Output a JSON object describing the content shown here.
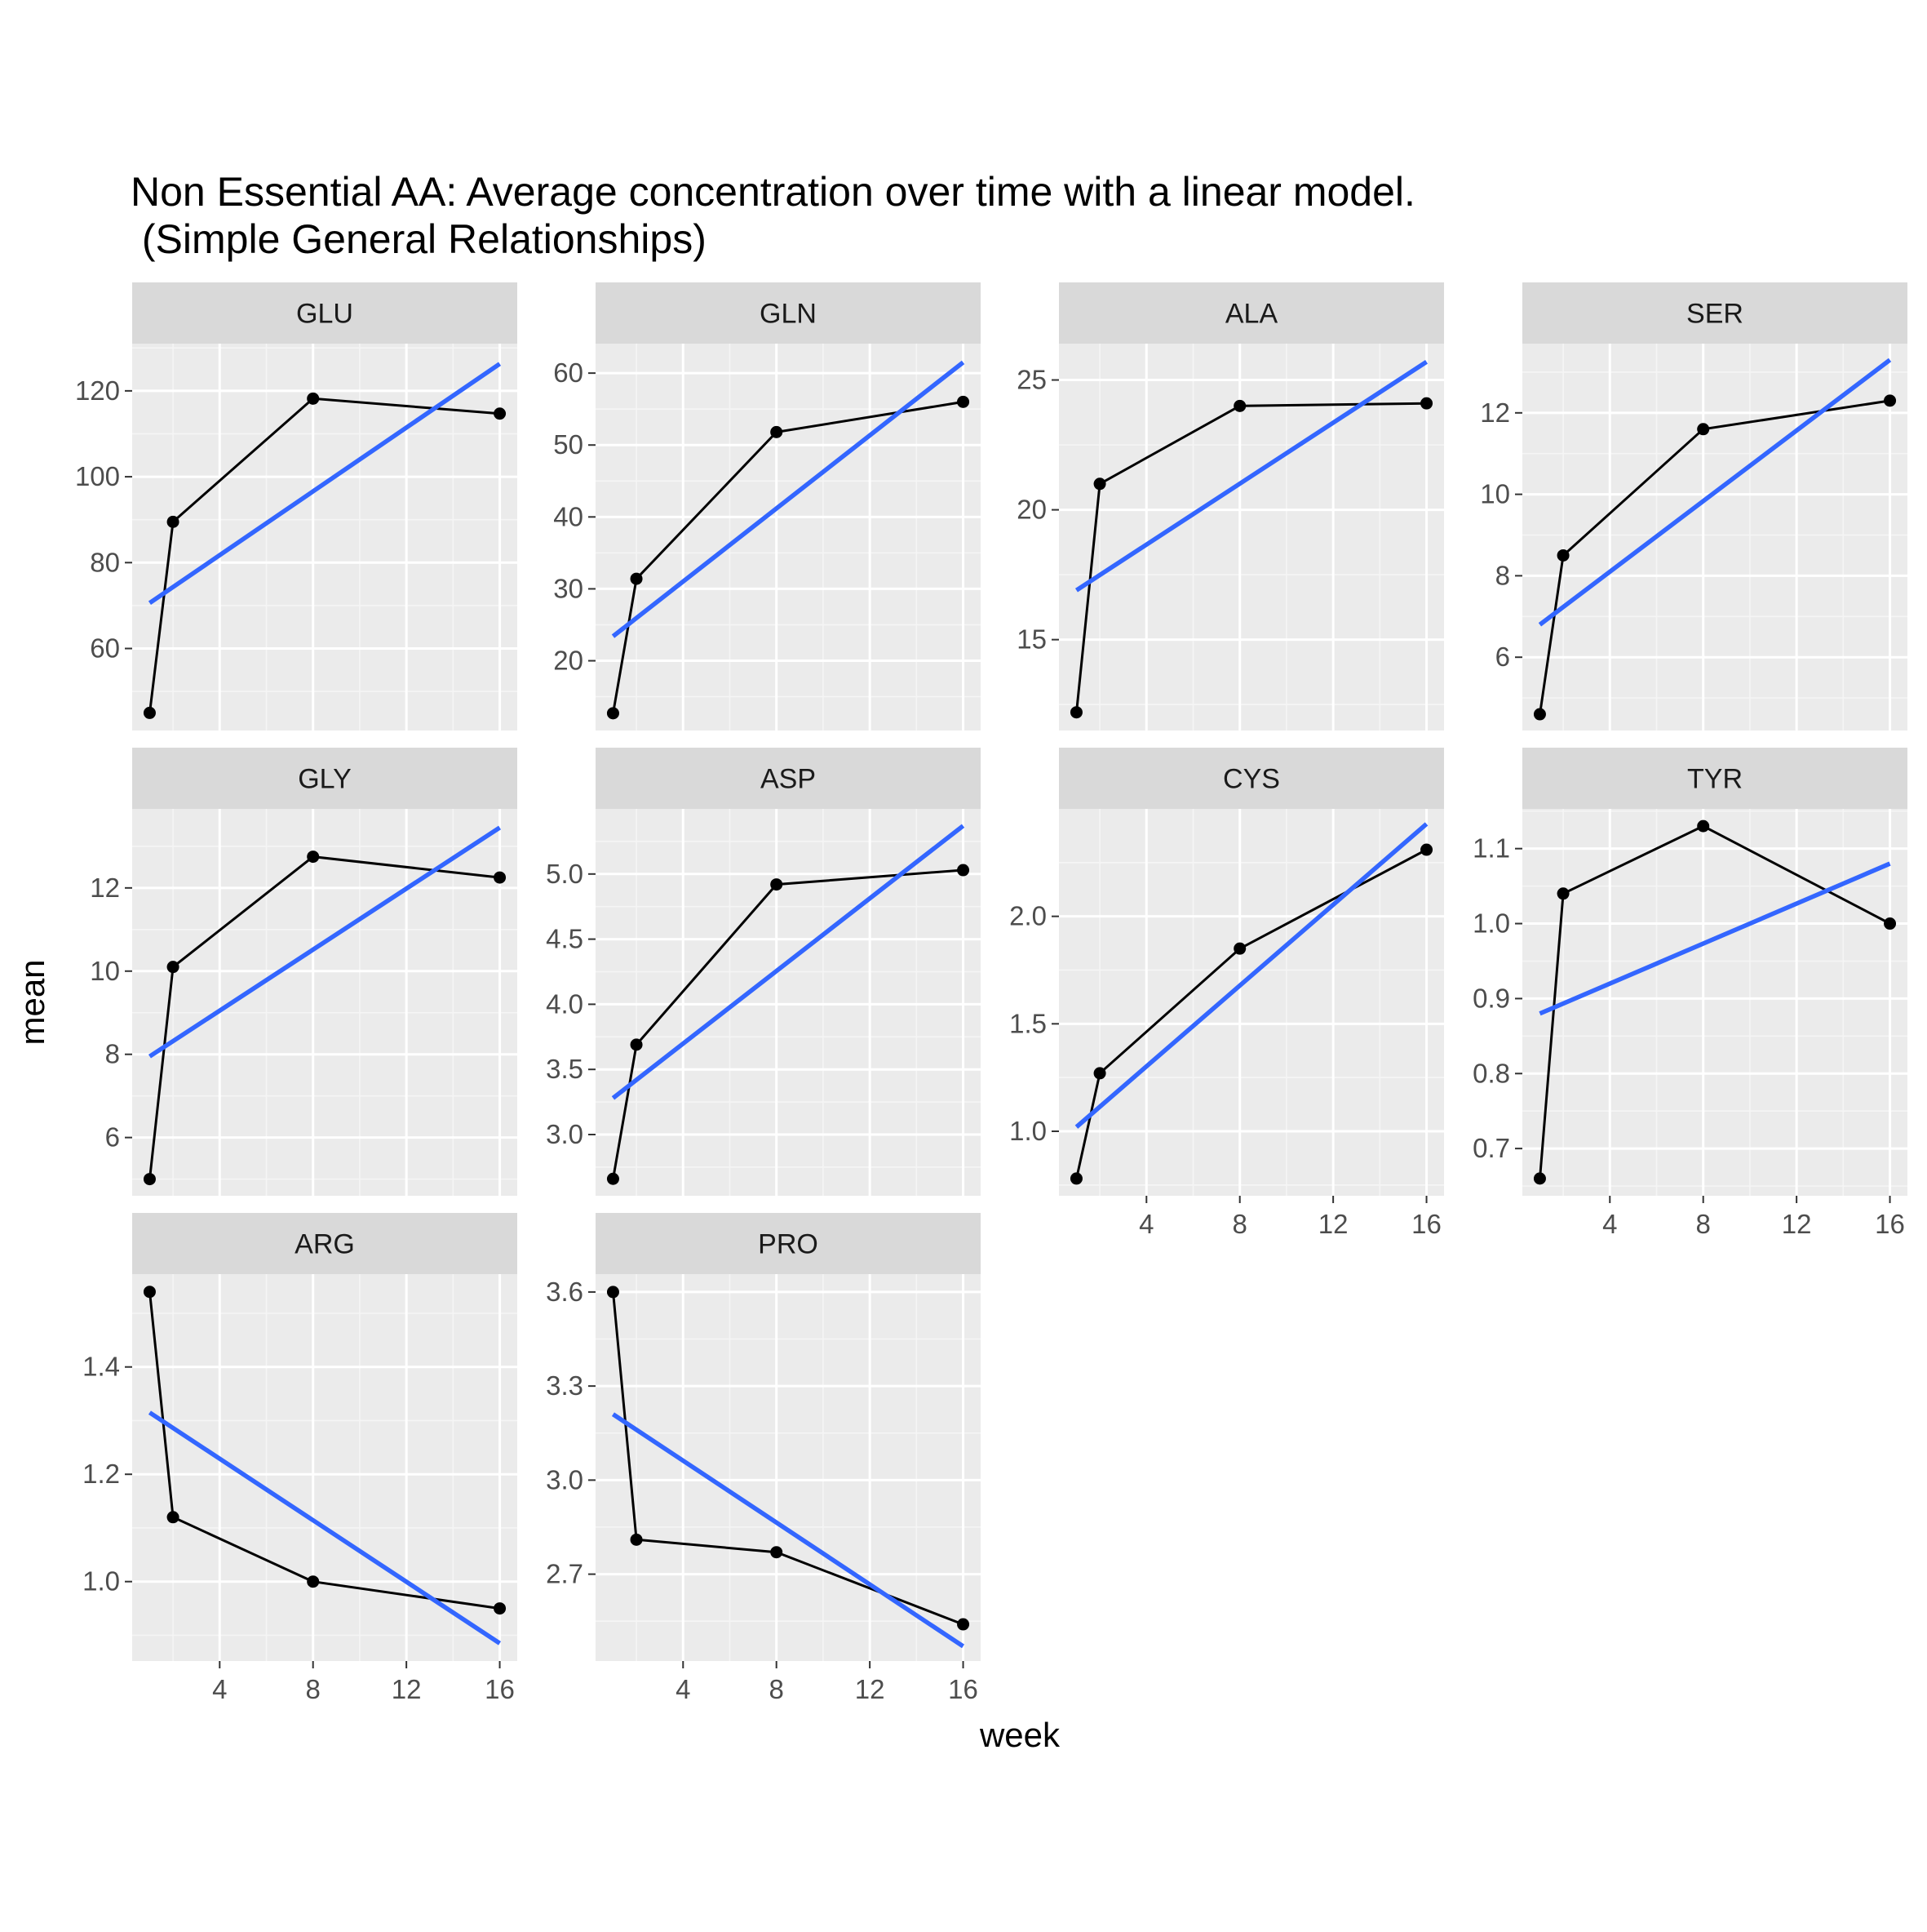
{
  "colors": {
    "panel_background": "#ebebeb",
    "strip_background": "#d9d9d9",
    "grid_major": "#ffffff",
    "grid_minor": "#f5f5f5",
    "observed_line": "#000000",
    "fit_line": "#3366ff",
    "tick_mark": "#333333"
  },
  "chart_data": {
    "type": "line",
    "title": "Non Essential AA: Average concentration over time with a linear model.\n (Simple General Relationships)",
    "xlabel": "week",
    "ylabel": "mean",
    "facet_layout": "4 columns, 3 rows",
    "x_ticks": [
      4,
      8,
      12,
      16
    ],
    "x_range": [
      0.25,
      16.75
    ],
    "grid": true,
    "series_styles": {
      "observed": "black line with points",
      "fit": "blue linear model line"
    },
    "panels": [
      {
        "name": "GLU",
        "x": [
          1,
          2,
          8,
          16
        ],
        "mean": [
          45.0,
          89.5,
          118.2,
          114.7
        ],
        "fit_x": [
          1,
          16
        ],
        "fit_y": [
          70.6,
          126.3
        ],
        "y_ticks": [
          60,
          80,
          100,
          120
        ],
        "ylim": [
          40.9,
          131.0
        ]
      },
      {
        "name": "GLN",
        "x": [
          1,
          2,
          8,
          16
        ],
        "mean": [
          12.7,
          31.4,
          51.8,
          56.0
        ],
        "fit_x": [
          1,
          16
        ],
        "fit_y": [
          23.4,
          61.5
        ],
        "y_ticks": [
          20,
          30,
          40,
          50,
          60
        ],
        "ylim": [
          10.3,
          64.1
        ]
      },
      {
        "name": "ALA",
        "x": [
          1,
          2,
          8,
          16
        ],
        "mean": [
          12.2,
          21.0,
          24.0,
          24.1
        ],
        "fit_x": [
          1,
          16
        ],
        "fit_y": [
          16.9,
          25.7
        ],
        "y_ticks": [
          15,
          20,
          25
        ],
        "ylim": [
          11.5,
          26.4
        ]
      },
      {
        "name": "SER",
        "x": [
          1,
          2,
          8,
          16
        ],
        "mean": [
          4.6,
          8.5,
          11.6,
          12.3
        ],
        "fit_x": [
          1,
          16
        ],
        "fit_y": [
          6.8,
          13.3
        ],
        "y_ticks": [
          6,
          8,
          10,
          12
        ],
        "ylim": [
          4.2,
          13.7
        ]
      },
      {
        "name": "GLY",
        "x": [
          1,
          2,
          8,
          16
        ],
        "mean": [
          5.0,
          10.1,
          12.75,
          12.25
        ],
        "fit_x": [
          1,
          16
        ],
        "fit_y": [
          7.95,
          13.45
        ],
        "y_ticks": [
          6,
          8,
          10,
          12
        ],
        "ylim": [
          4.6,
          13.9
        ]
      },
      {
        "name": "ASP",
        "x": [
          1,
          2,
          8,
          16
        ],
        "mean": [
          2.66,
          3.69,
          4.92,
          5.03
        ],
        "fit_x": [
          1,
          16
        ],
        "fit_y": [
          3.28,
          5.37
        ],
        "y_ticks": [
          3.0,
          3.5,
          4.0,
          4.5,
          5.0
        ],
        "ylim": [
          2.53,
          5.5
        ],
        "y_tick_format": "fixed1"
      },
      {
        "name": "CYS",
        "x": [
          1,
          2,
          8,
          16
        ],
        "mean": [
          0.78,
          1.27,
          1.85,
          2.31
        ],
        "fit_x": [
          1,
          16
        ],
        "fit_y": [
          1.02,
          2.43
        ],
        "y_ticks": [
          1.0,
          1.5,
          2.0
        ],
        "ylim": [
          0.7,
          2.5
        ],
        "y_tick_format": "fixed1"
      },
      {
        "name": "TYR",
        "x": [
          1,
          2,
          8,
          16
        ],
        "mean": [
          0.66,
          1.04,
          1.13,
          1.0
        ],
        "fit_x": [
          1,
          16
        ],
        "fit_y": [
          0.88,
          1.08
        ],
        "y_ticks": [
          0.7,
          0.8,
          0.9,
          1.0,
          1.1
        ],
        "ylim": [
          0.637,
          1.153
        ],
        "y_tick_format": "fixed1"
      },
      {
        "name": "ARG",
        "x": [
          1,
          2,
          8,
          16
        ],
        "mean": [
          1.54,
          1.12,
          1.0,
          0.95
        ],
        "fit_x": [
          1,
          16
        ],
        "fit_y": [
          1.315,
          0.885
        ],
        "y_ticks": [
          1.0,
          1.2,
          1.4
        ],
        "ylim": [
          0.852,
          1.573
        ],
        "y_tick_format": "fixed1"
      },
      {
        "name": "PRO",
        "x": [
          1,
          2,
          8,
          16
        ],
        "mean": [
          3.6,
          2.81,
          2.77,
          2.54
        ],
        "fit_x": [
          1,
          16
        ],
        "fit_y": [
          3.21,
          2.47
        ],
        "y_ticks": [
          2.7,
          3.0,
          3.3,
          3.6
        ],
        "ylim": [
          2.423,
          3.657
        ],
        "y_tick_format": "fixed1"
      }
    ]
  }
}
